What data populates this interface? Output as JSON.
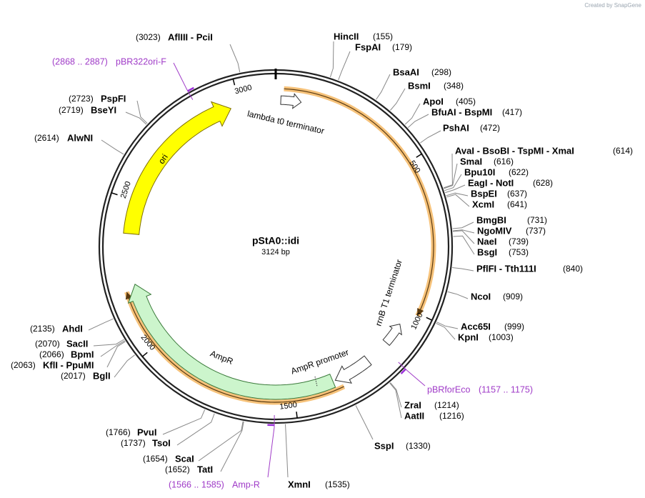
{
  "header": {
    "credit": "Created by SnapGene"
  },
  "map": {
    "name": "pStA0::idi",
    "size": "3124 bp",
    "ticks": [
      "500",
      "1000",
      "1500",
      "2000",
      "2500",
      "3000"
    ]
  },
  "features": [
    {
      "label": "lambda t0 terminator"
    },
    {
      "label": "rrnB T1 terminator"
    },
    {
      "label": "ori"
    },
    {
      "label": "AmpR"
    },
    {
      "label": "AmpR promoter"
    }
  ],
  "sites": [
    {
      "name": "HincII",
      "position": "(155)"
    },
    {
      "name": "FspAI",
      "position": "(179)"
    },
    {
      "name": "BsaAI",
      "position": "(298)"
    },
    {
      "name": "BsmI",
      "position": "(348)"
    },
    {
      "name": "ApoI",
      "position": "(405)"
    },
    {
      "name": "BfuAI  -  BspMI",
      "position": "(417)"
    },
    {
      "name": "PshAI",
      "position": "(472)"
    },
    {
      "name": "AvaI  -  BsoBI  -  TspMI  -  XmaI",
      "position": "(614)"
    },
    {
      "name": "SmaI",
      "position": "(616)"
    },
    {
      "name": "Bpu10I",
      "position": "(622)"
    },
    {
      "name": "EagI  -  NotI",
      "position": "(628)"
    },
    {
      "name": "BspEI",
      "position": "(637)"
    },
    {
      "name": "XcmI",
      "position": "(641)"
    },
    {
      "name": "BmgBI",
      "position": "(731)"
    },
    {
      "name": "NgoMIV",
      "position": "(737)"
    },
    {
      "name": "NaeI",
      "position": "(739)"
    },
    {
      "name": "BsgI",
      "position": "(753)"
    },
    {
      "name": "PflFI  -  Tth111I",
      "position": "(840)"
    },
    {
      "name": "NcoI",
      "position": "(909)"
    },
    {
      "name": "Acc65I",
      "position": "(999)"
    },
    {
      "name": "KpnI",
      "position": "(1003)"
    },
    {
      "name": "ZraI",
      "position": "(1214)"
    },
    {
      "name": "AatII",
      "position": "(1216)"
    },
    {
      "name": "SspI",
      "position": "(1330)"
    },
    {
      "name": "XmnI",
      "position": "(1535)"
    },
    {
      "name": "AflIII  -  PciI",
      "position": "(3023)"
    },
    {
      "name": "PspFI",
      "position": "(2723)"
    },
    {
      "name": "BseYI",
      "position": "(2719)"
    },
    {
      "name": "AlwNI",
      "position": "(2614)"
    },
    {
      "name": "AhdI",
      "position": "(2135)"
    },
    {
      "name": "SacII",
      "position": "(2070)"
    },
    {
      "name": "BpmI",
      "position": "(2066)"
    },
    {
      "name": "KflI  -  PpuMI",
      "position": "(2063)"
    },
    {
      "name": "BglI",
      "position": "(2017)"
    },
    {
      "name": "PvuI",
      "position": "(1766)"
    },
    {
      "name": "TsoI",
      "position": "(1737)"
    },
    {
      "name": "ScaI",
      "position": "(1654)"
    },
    {
      "name": "TatI",
      "position": "(1652)"
    }
  ],
  "primers": [
    {
      "name": "pBR322ori-F",
      "range": "(2868 .. 2887)"
    },
    {
      "name": "pBRforEco",
      "range": "(1157 .. 1175)"
    },
    {
      "name": "Amp-R",
      "range": "(1566 .. 1585)"
    }
  ]
}
